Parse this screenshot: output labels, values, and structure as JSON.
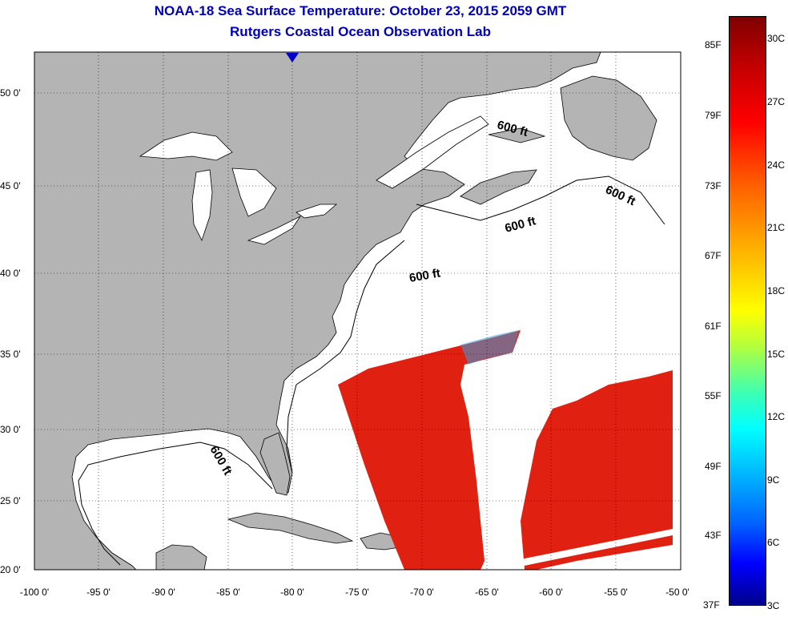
{
  "header": {
    "title": "NOAA-18 Sea Surface Temperature:  October 23, 2015 2059 GMT",
    "subtitle": "Rutgers Coastal Ocean Observation Lab"
  },
  "map": {
    "lat_labels": [
      "50 0'",
      "45 0'",
      "40 0'",
      "35 0'",
      "30 0'",
      "25 0'",
      "20 0'"
    ],
    "lon_labels": [
      "-100 0'",
      "-95 0'",
      "-90 0'",
      "-85 0'",
      "-80 0'",
      "-75 0'",
      "-70 0'",
      "-65 0'",
      "-60 0'",
      "-55 0'",
      "-50 0'"
    ],
    "isobath_labels": [
      "600 ft",
      "600 ft",
      "600 ft",
      "600 ft",
      "600 ft"
    ],
    "land_color": "#b4b4b4",
    "ocean_color": "#ffffff",
    "sst_color": "#e02010"
  },
  "colorbar": {
    "fahrenheit": [
      "85F",
      "79F",
      "73F",
      "67F",
      "61F",
      "55F",
      "49F",
      "43F",
      "37F"
    ],
    "celsius": [
      "30C",
      "27C",
      "24C",
      "21C",
      "18C",
      "15C",
      "12C",
      "9C",
      "6C",
      "3C"
    ]
  }
}
